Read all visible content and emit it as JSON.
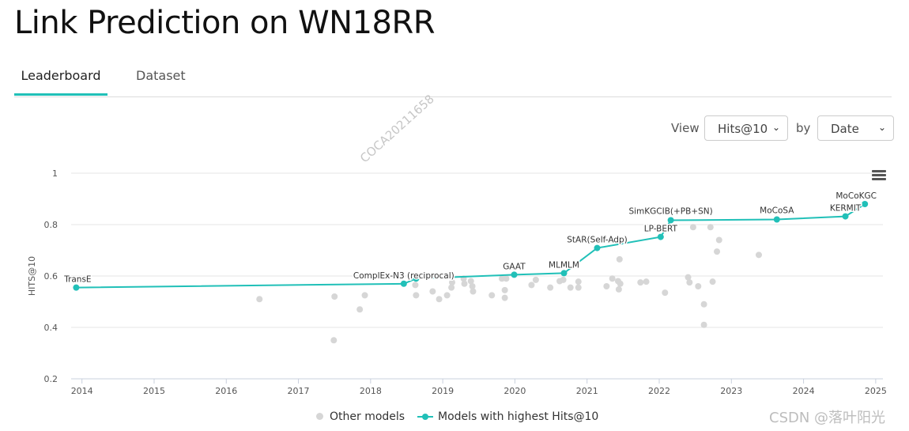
{
  "page": {
    "title": "Link Prediction on WN18RR"
  },
  "tabs": [
    {
      "label": "Leaderboard",
      "active": true
    },
    {
      "label": "Dataset",
      "active": false
    }
  ],
  "controls": {
    "view_label": "View",
    "view_value": "Hits@10",
    "by_label": "by",
    "by_value": "Date"
  },
  "watermarks": {
    "diagonal": "COCA20211658",
    "corner": "CSDN @落叶阳光"
  },
  "icons": {
    "menu": "hamburger-menu-icon"
  },
  "colors": {
    "accent": "#21c0b8",
    "other_models": "#d6d6d6"
  },
  "chart_data": {
    "type": "scatter",
    "ylabel": "HITS@10",
    "xlabel": "",
    "ylim": [
      0.2,
      1.0
    ],
    "yticks": [
      "0.2",
      "0.4",
      "0.6",
      "0.8",
      "1"
    ],
    "xlim": [
      2013.85,
      2025.1
    ],
    "xticks": [
      "2014",
      "2015",
      "2016",
      "2017",
      "2018",
      "2019",
      "2020",
      "2021",
      "2022",
      "2023",
      "2024",
      "2025"
    ],
    "grid": true,
    "legend": {
      "position": "bottom",
      "items": [
        "Other models",
        "Models with highest Hits@10"
      ]
    },
    "series": [
      {
        "name": "Models with highest Hits@10",
        "color": "#21c0b8",
        "mode": "line+markers",
        "points": [
          {
            "label": "TransE",
            "x": 2013.92,
            "y": 0.555
          },
          {
            "label": "ComplEx-N3 (reciprocal)",
            "x": 2018.46,
            "y": 0.57
          },
          {
            "label": "",
            "x": 2018.63,
            "y": 0.59
          },
          {
            "label": "GAAT",
            "x": 2019.99,
            "y": 0.605
          },
          {
            "label": "MLMLM",
            "x": 2020.68,
            "y": 0.611
          },
          {
            "label": "StAR(Self-Adp)",
            "x": 2021.14,
            "y": 0.709
          },
          {
            "label": "LP-BERT",
            "x": 2022.02,
            "y": 0.752
          },
          {
            "label": "SimKGCIB(+PB+SN)",
            "x": 2022.16,
            "y": 0.817
          },
          {
            "label": "MoCoSA",
            "x": 2023.63,
            "y": 0.82
          },
          {
            "label": "KERMIT",
            "x": 2024.58,
            "y": 0.832
          },
          {
            "label": "MoCoKGC",
            "x": 2024.85,
            "y": 0.88
          }
        ]
      },
      {
        "name": "Other models",
        "color": "#d6d6d6",
        "mode": "markers",
        "points": [
          {
            "x": 2016.46,
            "y": 0.51
          },
          {
            "x": 2017.49,
            "y": 0.35
          },
          {
            "x": 2017.5,
            "y": 0.52
          },
          {
            "x": 2017.85,
            "y": 0.47
          },
          {
            "x": 2017.92,
            "y": 0.525
          },
          {
            "x": 2018.62,
            "y": 0.565
          },
          {
            "x": 2018.63,
            "y": 0.525
          },
          {
            "x": 2018.86,
            "y": 0.54
          },
          {
            "x": 2018.95,
            "y": 0.51
          },
          {
            "x": 2019.06,
            "y": 0.525
          },
          {
            "x": 2019.12,
            "y": 0.555
          },
          {
            "x": 2019.13,
            "y": 0.575
          },
          {
            "x": 2019.29,
            "y": 0.59
          },
          {
            "x": 2019.3,
            "y": 0.57
          },
          {
            "x": 2019.39,
            "y": 0.58
          },
          {
            "x": 2019.41,
            "y": 0.56
          },
          {
            "x": 2019.42,
            "y": 0.54
          },
          {
            "x": 2019.68,
            "y": 0.525
          },
          {
            "x": 2019.82,
            "y": 0.59
          },
          {
            "x": 2019.86,
            "y": 0.545
          },
          {
            "x": 2019.86,
            "y": 0.515
          },
          {
            "x": 2019.88,
            "y": 0.59
          },
          {
            "x": 2020.23,
            "y": 0.565
          },
          {
            "x": 2020.29,
            "y": 0.585
          },
          {
            "x": 2020.49,
            "y": 0.555
          },
          {
            "x": 2020.62,
            "y": 0.58
          },
          {
            "x": 2020.67,
            "y": 0.585
          },
          {
            "x": 2020.77,
            "y": 0.555
          },
          {
            "x": 2020.88,
            "y": 0.578
          },
          {
            "x": 2020.88,
            "y": 0.555
          },
          {
            "x": 2021.27,
            "y": 0.56
          },
          {
            "x": 2021.35,
            "y": 0.59
          },
          {
            "x": 2021.43,
            "y": 0.58
          },
          {
            "x": 2021.44,
            "y": 0.548
          },
          {
            "x": 2021.45,
            "y": 0.665
          },
          {
            "x": 2021.46,
            "y": 0.57
          },
          {
            "x": 2021.74,
            "y": 0.575
          },
          {
            "x": 2021.82,
            "y": 0.578
          },
          {
            "x": 2022.08,
            "y": 0.535
          },
          {
            "x": 2022.4,
            "y": 0.595
          },
          {
            "x": 2022.42,
            "y": 0.575
          },
          {
            "x": 2022.47,
            "y": 0.79
          },
          {
            "x": 2022.54,
            "y": 0.56
          },
          {
            "x": 2022.62,
            "y": 0.49
          },
          {
            "x": 2022.62,
            "y": 0.41
          },
          {
            "x": 2022.71,
            "y": 0.79
          },
          {
            "x": 2022.74,
            "y": 0.578
          },
          {
            "x": 2022.8,
            "y": 0.695
          },
          {
            "x": 2022.83,
            "y": 0.74
          },
          {
            "x": 2023.38,
            "y": 0.682
          }
        ]
      }
    ]
  }
}
